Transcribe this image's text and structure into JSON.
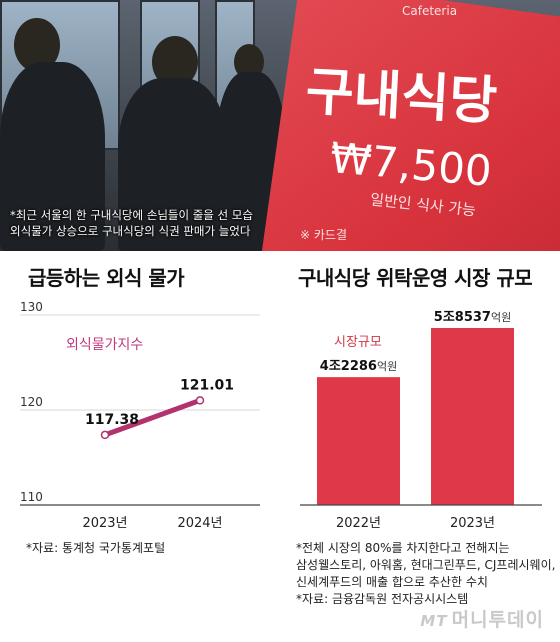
{
  "photo": {
    "sign_line1": "Cafeteria",
    "sign_title": "구내식당",
    "sign_price": "₩7,500",
    "sign_sub": "일반인 식사 가능",
    "sign_bottom": "※ 카드결",
    "caption_line1": "*최근 서울의 한 구내식당에 손님들이 줄을 선 모습",
    "caption_line2": "외식물가 상승으로 구내식당의 식권 판매가 늘었다"
  },
  "watermark": {
    "mark": "MT",
    "text": "머니투데이"
  },
  "colors": {
    "line": "#b3316f",
    "bar": "#df3848",
    "label_pink": "#c23a7e",
    "label_red": "#d23746"
  },
  "chart_data": [
    {
      "type": "line",
      "title": "급등하는 외식 물가",
      "series": [
        {
          "name": "외식물가지수",
          "x": [
            "2023년",
            "2024년"
          ],
          "values": [
            117.38,
            121.01
          ]
        }
      ],
      "data_labels": [
        "117.38",
        "121.01"
      ],
      "yticks": [
        110,
        120,
        130
      ],
      "ylim": [
        110,
        130
      ],
      "grid": "horizontal",
      "footnote": "*자료: 통계청 국가통계포털"
    },
    {
      "type": "bar",
      "title": "구내식당 위탁운영 시장 규모",
      "series_label": "시장규모",
      "categories": [
        "2022년",
        "2023년"
      ],
      "values": [
        42286,
        58537
      ],
      "unit": "억원",
      "data_labels": [
        {
          "num": "4조2286",
          "unit": "억원"
        },
        {
          "num": "5조8537",
          "unit": "억원"
        }
      ],
      "footnote_lines": [
        "*전체 시장의 80%를 차지한다고 전해지는",
        "삼성웰스토리, 아워홈, 현대그린푸드, CJ프레시웨이,",
        "신세계푸드의 매출 합으로 추산한 수치",
        "*자료: 금융감독원 전자공시시스템"
      ]
    }
  ]
}
